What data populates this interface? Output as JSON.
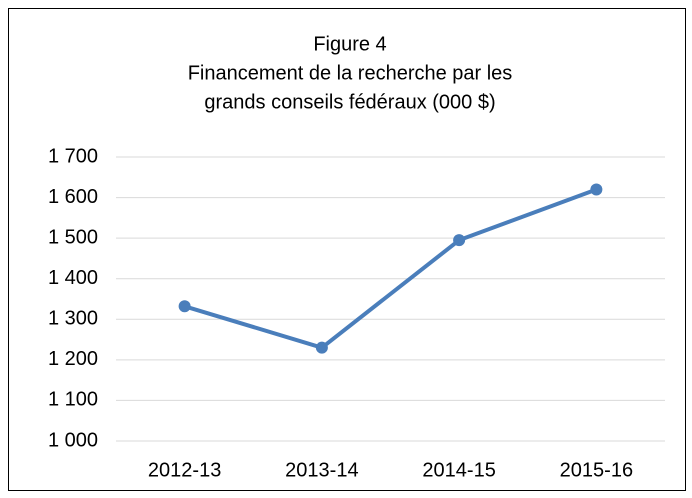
{
  "chart_data": {
    "type": "line",
    "title": [
      "Figure 4",
      "Financement de la recherche par les",
      "grands conseils fédéraux (000 $)"
    ],
    "categories": [
      "2012-13",
      "2013-14",
      "2014-15",
      "2015-16"
    ],
    "series": [
      {
        "name": "Financement",
        "color": "#4a7ebb",
        "values": [
          1332,
          1230,
          1495,
          1620
        ]
      }
    ],
    "ylim": [
      1000,
      1700
    ],
    "yticks": [
      {
        "value": 1000,
        "label": "1 000"
      },
      {
        "value": 1100,
        "label": "1 100"
      },
      {
        "value": 1200,
        "label": "1 200"
      },
      {
        "value": 1300,
        "label": "1 300"
      },
      {
        "value": 1400,
        "label": "1 400"
      },
      {
        "value": 1500,
        "label": "1 500"
      },
      {
        "value": 1600,
        "label": "1 600"
      },
      {
        "value": 1700,
        "label": "1 700"
      }
    ],
    "grid": true
  }
}
